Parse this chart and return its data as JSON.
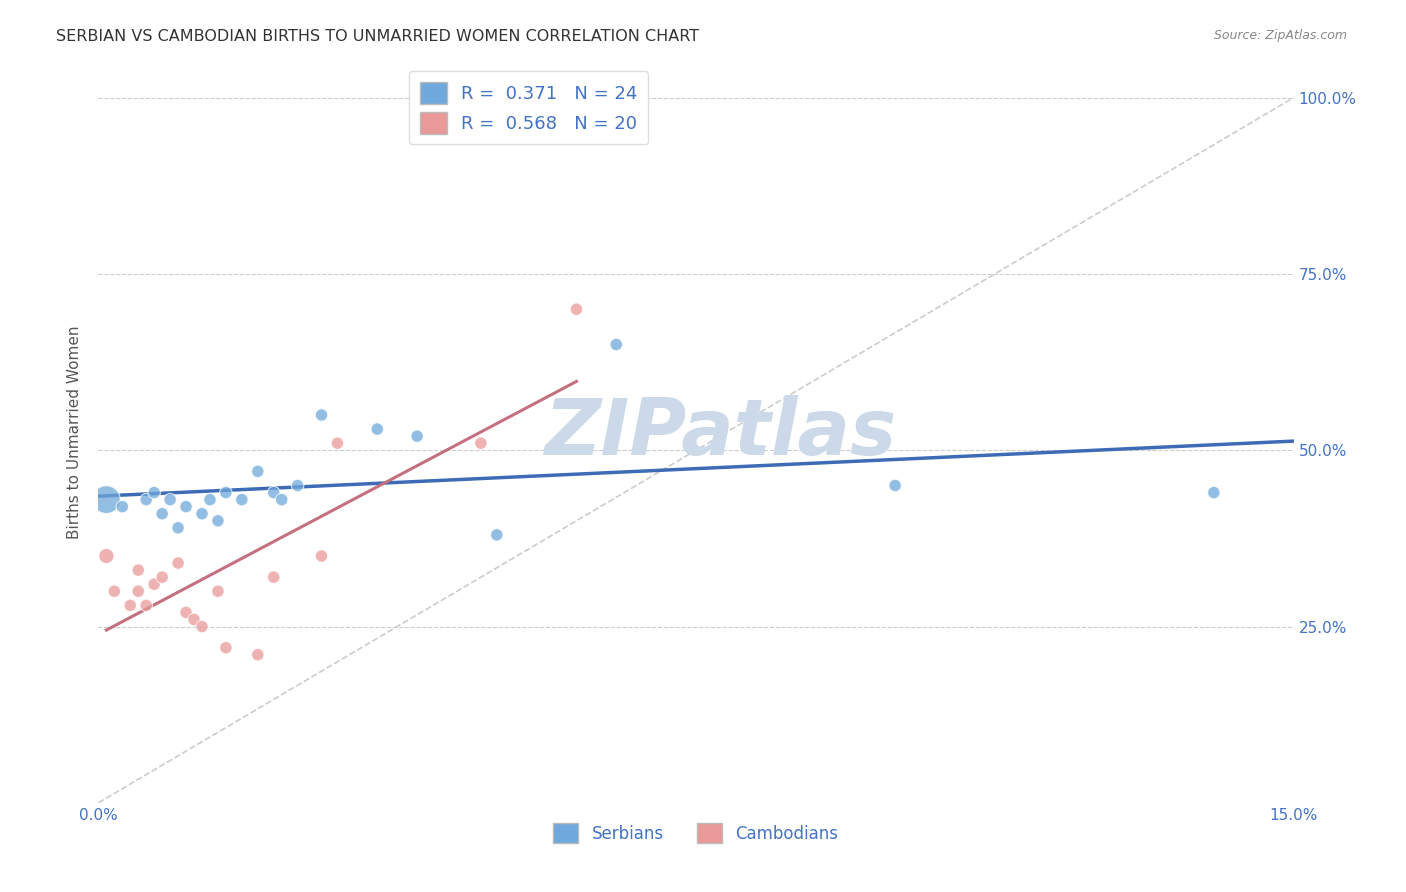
{
  "title": "SERBIAN VS CAMBODIAN BIRTHS TO UNMARRIED WOMEN CORRELATION CHART",
  "source": "Source: ZipAtlas.com",
  "ylabel": "Births to Unmarried Women",
  "xlim": [
    0.0,
    0.15
  ],
  "ylim": [
    0.0,
    1.05
  ],
  "xticks": [
    0.0,
    0.03,
    0.06,
    0.09,
    0.12,
    0.15
  ],
  "xticklabels": [
    "0.0%",
    "",
    "",
    "",
    "",
    "15.0%"
  ],
  "yticks": [
    0.0,
    0.25,
    0.5,
    0.75,
    1.0
  ],
  "yticklabels": [
    "",
    "25.0%",
    "50.0%",
    "75.0%",
    "100.0%"
  ],
  "serbian_R": 0.371,
  "serbian_N": 24,
  "cambodian_R": 0.568,
  "cambodian_N": 20,
  "serbian_color": "#6fa8dc",
  "cambodian_color": "#ea9999",
  "trend_line_serbian_color": "#3d6bb5",
  "trend_line_cambodian_color": "#c47080",
  "diagonal_color": "#cccccc",
  "background_color": "#ffffff",
  "grid_color": "#cccccc",
  "watermark_color": "#ccd9e8",
  "watermark_text": "ZIPatlas",
  "tick_color": "#4472c4",
  "label_color": "#555555",
  "title_color": "#333333",
  "serbian_x": [
    0.001,
    0.003,
    0.006,
    0.007,
    0.008,
    0.009,
    0.01,
    0.011,
    0.013,
    0.014,
    0.015,
    0.016,
    0.018,
    0.02,
    0.022,
    0.023,
    0.025,
    0.028,
    0.035,
    0.04,
    0.05,
    0.065,
    0.1,
    0.14
  ],
  "serbian_y": [
    0.43,
    0.42,
    0.43,
    0.44,
    0.41,
    0.43,
    0.39,
    0.42,
    0.41,
    0.43,
    0.4,
    0.44,
    0.43,
    0.47,
    0.44,
    0.43,
    0.45,
    0.55,
    0.53,
    0.52,
    0.38,
    0.65,
    0.45,
    0.44
  ],
  "serbian_sizes": [
    400,
    80,
    80,
    80,
    80,
    80,
    80,
    80,
    80,
    80,
    80,
    80,
    80,
    80,
    80,
    80,
    80,
    80,
    80,
    80,
    80,
    80,
    80,
    80
  ],
  "cambodian_x": [
    0.001,
    0.002,
    0.004,
    0.005,
    0.005,
    0.006,
    0.007,
    0.008,
    0.01,
    0.011,
    0.012,
    0.013,
    0.015,
    0.016,
    0.02,
    0.022,
    0.028,
    0.03,
    0.048,
    0.06
  ],
  "cambodian_y": [
    0.35,
    0.3,
    0.28,
    0.33,
    0.3,
    0.28,
    0.31,
    0.32,
    0.34,
    0.27,
    0.26,
    0.25,
    0.3,
    0.22,
    0.21,
    0.32,
    0.35,
    0.51,
    0.51,
    0.7
  ],
  "cambodian_sizes": [
    120,
    80,
    80,
    80,
    80,
    80,
    80,
    80,
    80,
    80,
    80,
    80,
    80,
    80,
    80,
    80,
    80,
    80,
    80,
    80
  ],
  "legend_serbian_label": "R =  0.371   N = 24",
  "legend_cambodian_label": "R =  0.568   N = 20",
  "bottom_legend_serbian": "Serbians",
  "bottom_legend_cambodian": "Cambodians"
}
